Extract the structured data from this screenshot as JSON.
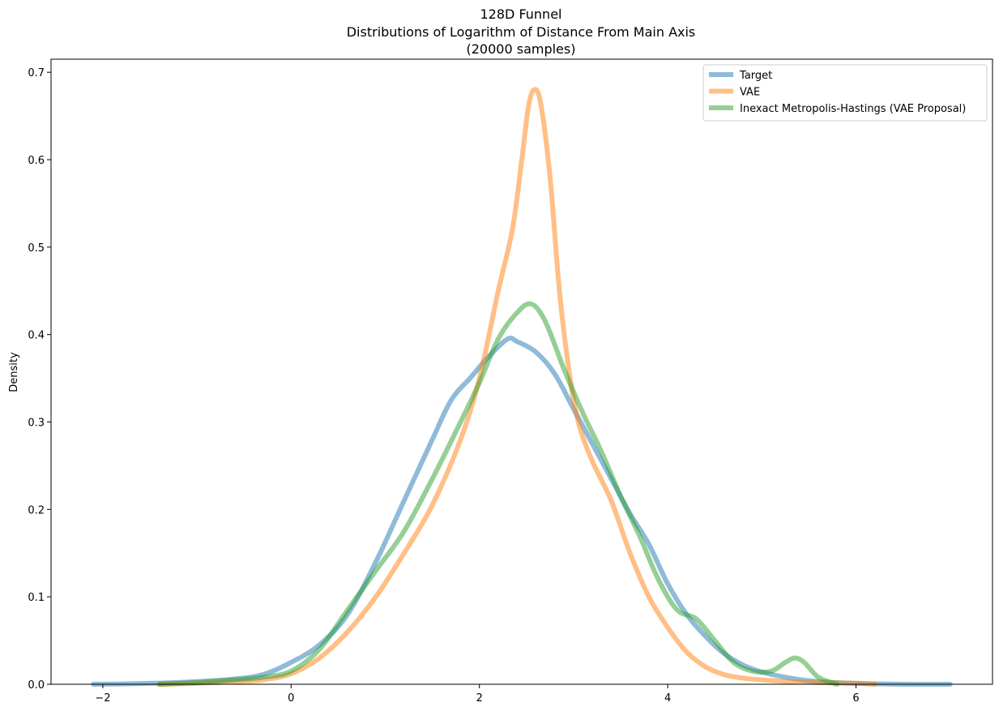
{
  "chart_data": {
    "type": "line",
    "title": "128D Funnel",
    "subtitle": "Distributions of Logarithm of Distance From Main Axis",
    "subtitle2": "(20000 samples)",
    "xlabel": "",
    "ylabel": "Density",
    "xlim": [
      -2.55,
      7.45
    ],
    "ylim": [
      0,
      0.715
    ],
    "xticks": [
      -2,
      0,
      2,
      4,
      6
    ],
    "xtick_labels": [
      "−2",
      "0",
      "2",
      "4",
      "6"
    ],
    "yticks": [
      0.0,
      0.1,
      0.2,
      0.3,
      0.4,
      0.5,
      0.6,
      0.7
    ],
    "ytick_labels": [
      "0.0",
      "0.1",
      "0.2",
      "0.3",
      "0.4",
      "0.5",
      "0.6",
      "0.7"
    ],
    "grid": false,
    "legend_position": "top-right",
    "series": [
      {
        "name": "Target",
        "color": "#1f77b4",
        "x": [
          -2.1,
          -1.5,
          -1.0,
          -0.6,
          -0.3,
          0.0,
          0.3,
          0.6,
          0.9,
          1.2,
          1.5,
          1.7,
          1.9,
          2.1,
          2.3,
          2.4,
          2.6,
          2.8,
          3.0,
          3.2,
          3.4,
          3.6,
          3.8,
          4.0,
          4.2,
          4.4,
          4.6,
          4.8,
          5.0,
          5.3,
          5.6,
          6.0,
          6.5,
          7.0
        ],
        "y": [
          0.0,
          0.001,
          0.003,
          0.006,
          0.011,
          0.025,
          0.045,
          0.08,
          0.14,
          0.21,
          0.28,
          0.325,
          0.35,
          0.375,
          0.395,
          0.392,
          0.38,
          0.355,
          0.315,
          0.275,
          0.235,
          0.195,
          0.16,
          0.115,
          0.08,
          0.055,
          0.035,
          0.022,
          0.014,
          0.007,
          0.003,
          0.001,
          0.0,
          0.0
        ]
      },
      {
        "name": "VAE",
        "color": "#ff7f0e",
        "x": [
          -1.4,
          -1.0,
          -0.6,
          -0.3,
          0.0,
          0.3,
          0.6,
          0.9,
          1.2,
          1.5,
          1.8,
          2.0,
          2.2,
          2.35,
          2.45,
          2.52,
          2.58,
          2.65,
          2.75,
          2.85,
          2.95,
          3.05,
          3.2,
          3.4,
          3.6,
          3.8,
          4.0,
          4.2,
          4.4,
          4.6,
          4.8,
          5.0,
          5.3,
          5.6,
          6.0,
          6.2
        ],
        "y": [
          0.0,
          0.001,
          0.003,
          0.005,
          0.012,
          0.03,
          0.06,
          0.1,
          0.15,
          0.205,
          0.28,
          0.35,
          0.45,
          0.52,
          0.6,
          0.66,
          0.68,
          0.665,
          0.58,
          0.45,
          0.36,
          0.3,
          0.255,
          0.21,
          0.15,
          0.1,
          0.065,
          0.037,
          0.02,
          0.011,
          0.007,
          0.005,
          0.003,
          0.002,
          0.001,
          0.0
        ]
      },
      {
        "name": "Inexact Metropolis-Hastings (VAE Proposal)",
        "color": "#2ca02c",
        "x": [
          -1.4,
          -1.0,
          -0.6,
          -0.3,
          0.0,
          0.3,
          0.6,
          0.9,
          1.2,
          1.5,
          1.8,
          2.0,
          2.2,
          2.4,
          2.55,
          2.7,
          2.9,
          3.1,
          3.3,
          3.5,
          3.7,
          3.9,
          4.1,
          4.3,
          4.5,
          4.7,
          4.9,
          5.1,
          5.25,
          5.35,
          5.45,
          5.6,
          5.8
        ],
        "y": [
          0.0,
          0.002,
          0.005,
          0.008,
          0.015,
          0.04,
          0.085,
          0.13,
          0.175,
          0.235,
          0.3,
          0.345,
          0.395,
          0.425,
          0.435,
          0.415,
          0.36,
          0.31,
          0.265,
          0.215,
          0.17,
          0.12,
          0.085,
          0.075,
          0.05,
          0.025,
          0.015,
          0.015,
          0.025,
          0.03,
          0.025,
          0.008,
          0.0
        ]
      }
    ]
  }
}
